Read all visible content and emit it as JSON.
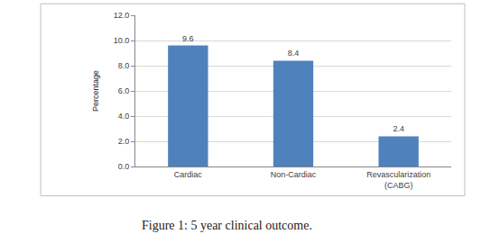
{
  "chart_data": {
    "type": "bar",
    "title": "Figure 1: 5 year clinical outcome.",
    "y_label": "Percentage",
    "categories": [
      "Cardiac",
      "Non-Cardiac",
      "Revascularization (CABG)"
    ],
    "values": [
      9.6,
      8.4,
      2.4
    ],
    "color": "#4f81bd",
    "ylim": [
      0,
      12
    ],
    "yticks": [
      {
        "value": 0,
        "label": "0.0"
      },
      {
        "value": 2,
        "label": "2.0"
      },
      {
        "value": 4,
        "label": "4.0"
      },
      {
        "value": 6,
        "label": "6.0"
      },
      {
        "value": 8,
        "label": "8.0"
      },
      {
        "value": 10,
        "label": "10.0"
      },
      {
        "value": 12,
        "label": "12.0"
      }
    ],
    "grid": true,
    "data_labels": true
  }
}
